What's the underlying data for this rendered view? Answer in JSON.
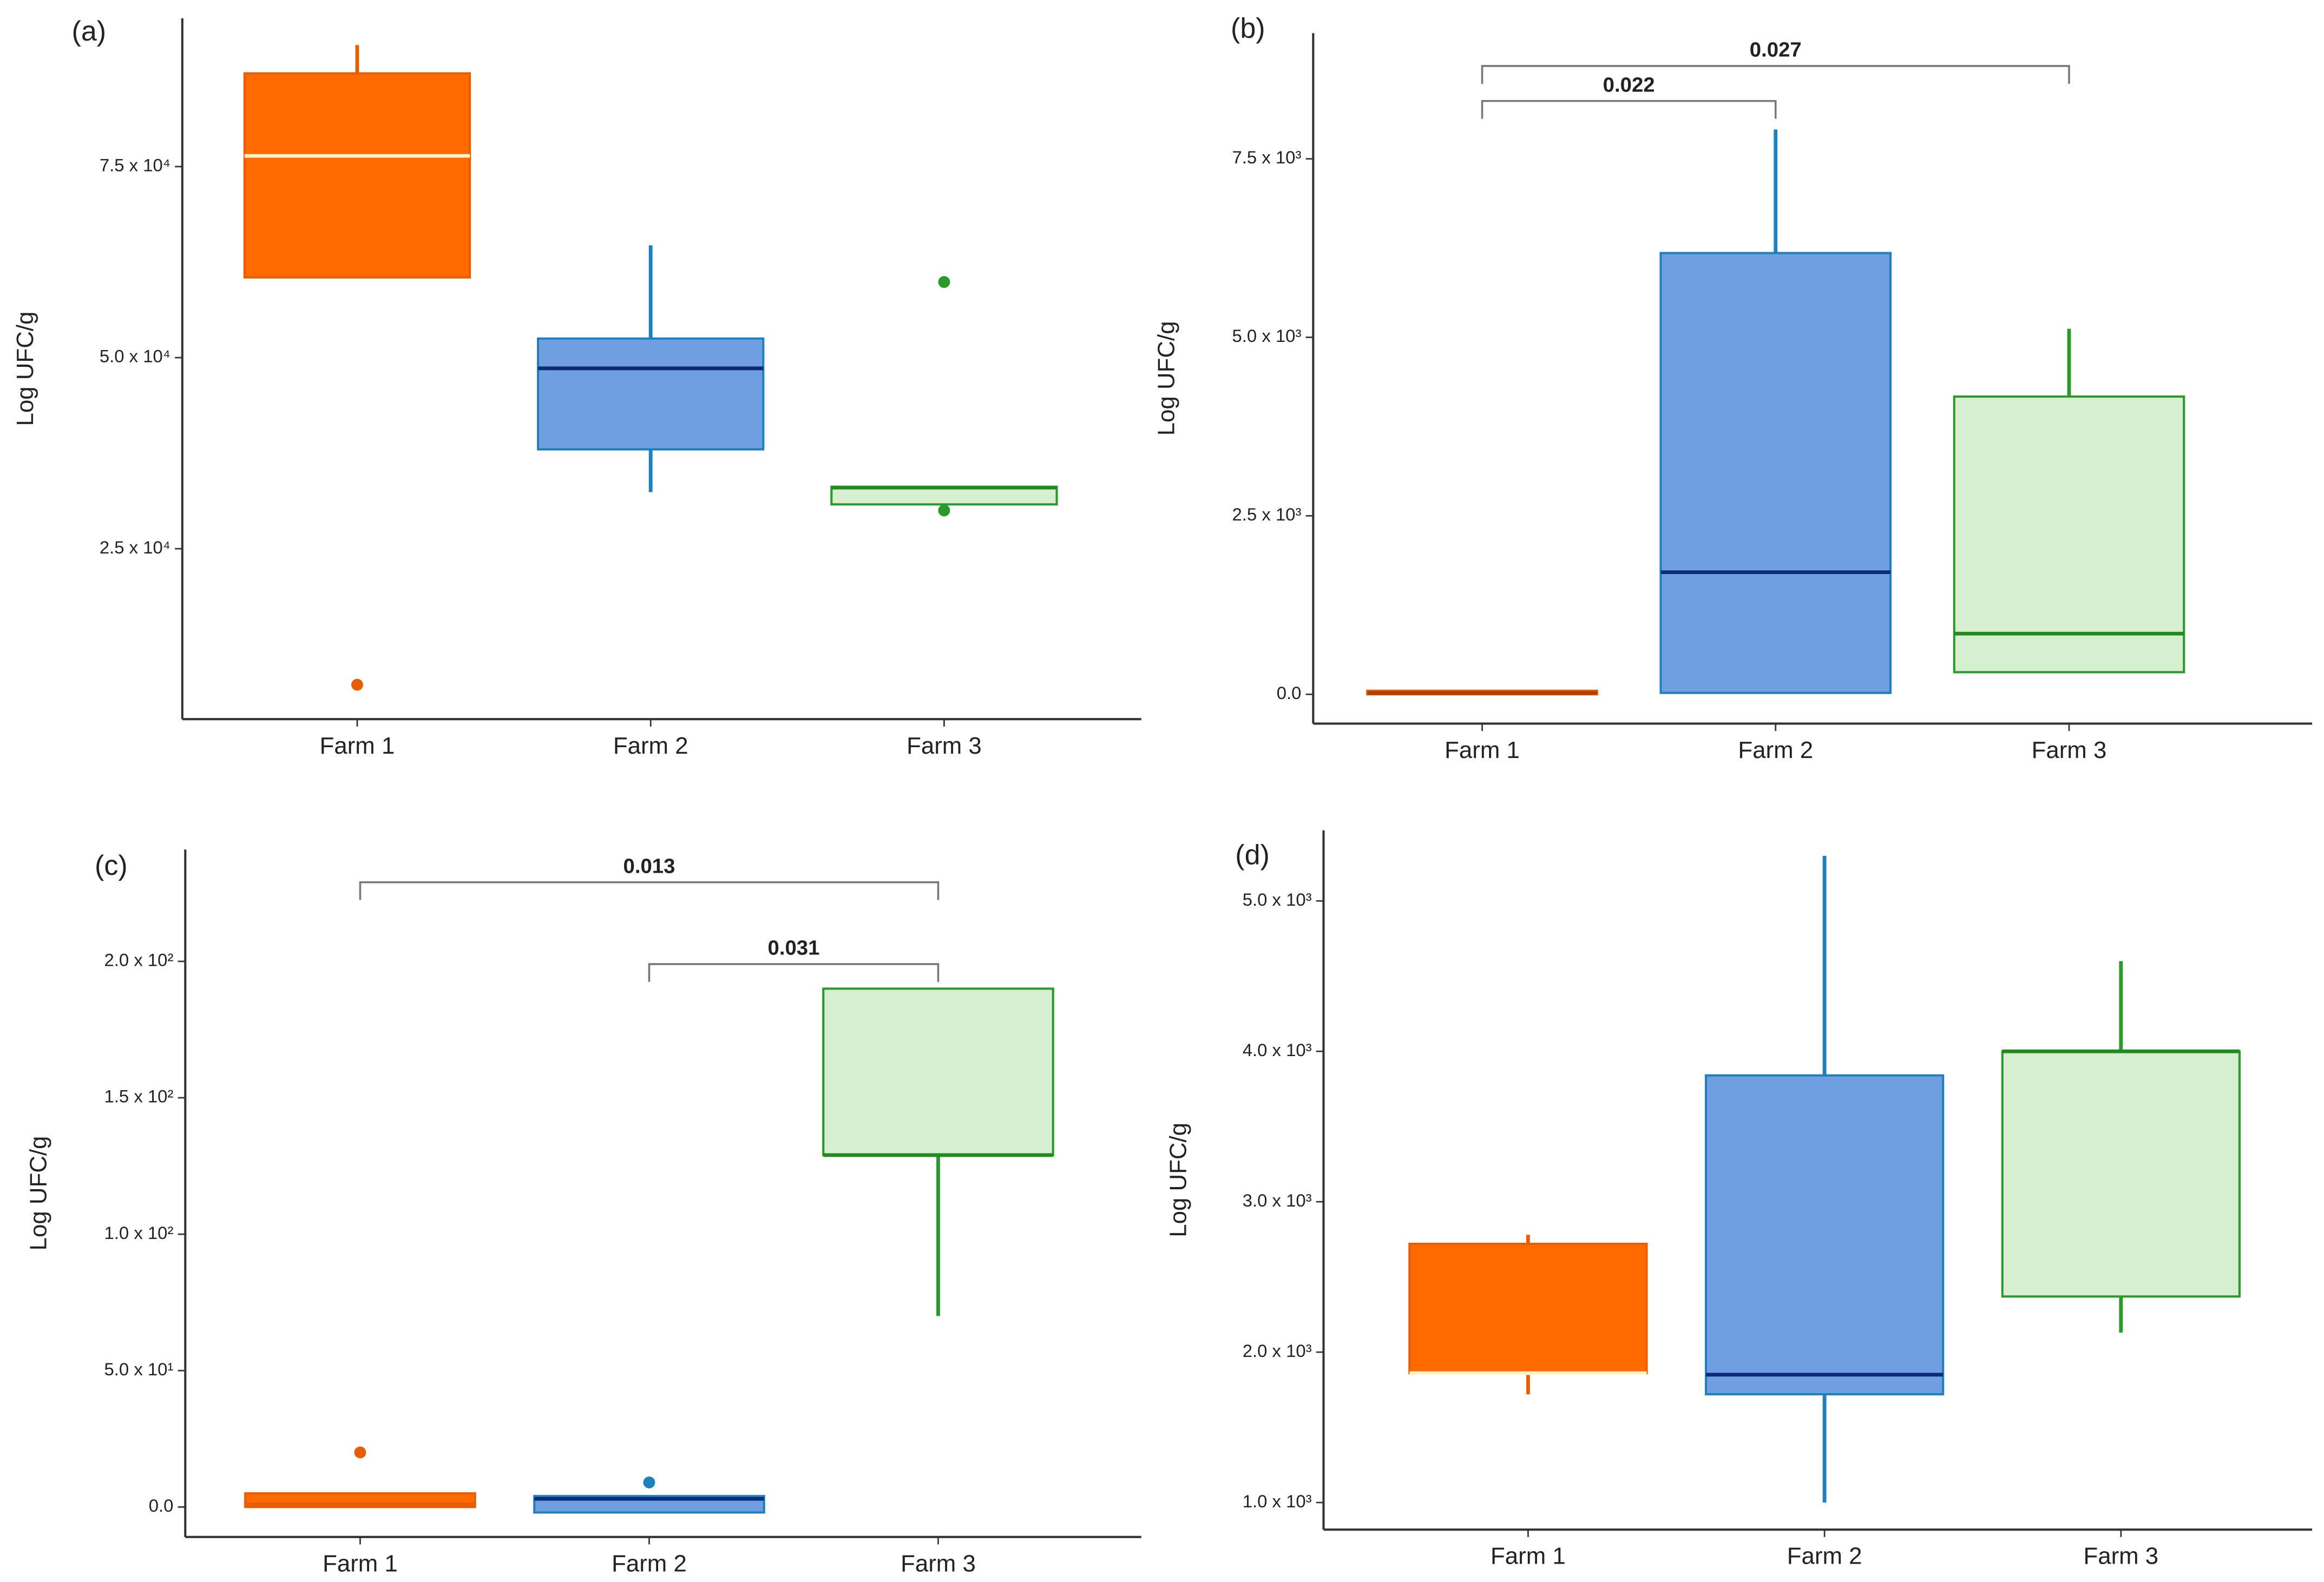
{
  "chart_data": [
    {
      "type": "box",
      "panel_label": "(a)",
      "y_label": "Log UFC/g",
      "categories": [
        "Farm 1",
        "Farm 2",
        "Farm 3"
      ],
      "ylim": [
        2700,
        94400
      ],
      "yticks": [
        {
          "value": 25000,
          "label": "2.5 x 10⁴"
        },
        {
          "value": 50000,
          "label": "5.0 x 10⁴"
        },
        {
          "value": 75000,
          "label": "7.5 x 10⁴"
        }
      ],
      "boxes": [
        {
          "min": 60500,
          "q1": 60500,
          "median": 76400,
          "q3": 87200,
          "max": 90900,
          "outliers": [
            7200
          ],
          "color": "#ff6a00",
          "edge_color": "#e85d00",
          "median_color": "#fff3cc"
        },
        {
          "min": 32400,
          "q1": 38000,
          "median": 48600,
          "q3": 52500,
          "max": 64700,
          "outliers": [],
          "color": "#6f9fe0",
          "edge_color": "#1f80c0",
          "median_color": "#0b2a78"
        },
        {
          "min": 30800,
          "q1": 30800,
          "median": 33000,
          "q3": 33100,
          "max": 33100,
          "outliers": [
            59900,
            30000
          ],
          "color": "#d7eed0",
          "edge_color": "#2a9a2a",
          "median_color": "#1f8b1f"
        }
      ],
      "annotations": []
    },
    {
      "type": "box",
      "panel_label": "(b)",
      "y_label": "Log UFC/g",
      "categories": [
        "Farm 1",
        "Farm 2",
        "Farm 3"
      ],
      "ylim": [
        -410,
        9260
      ],
      "yticks": [
        {
          "value": 0,
          "label": "0.0"
        },
        {
          "value": 2500,
          "label": "2.5 x 10³"
        },
        {
          "value": 5000,
          "label": "5.0 x 10³"
        },
        {
          "value": 7500,
          "label": "7.5 x 10³"
        }
      ],
      "boxes": [
        {
          "min": 0,
          "q1": 0,
          "median": 20,
          "q3": 50,
          "max": 50,
          "outliers": [],
          "color": "#ff6a00",
          "edge_color": "#e85d00",
          "median_color": "#b04000"
        },
        {
          "min": 20,
          "q1": 20,
          "median": 1710,
          "q3": 6180,
          "max": 7910,
          "outliers": [],
          "color": "#6f9fe0",
          "edge_color": "#1f80c0",
          "median_color": "#0b2a78"
        },
        {
          "min": 310,
          "q1": 310,
          "median": 850,
          "q3": 4170,
          "max": 5120,
          "outliers": [],
          "color": "#d7eed0",
          "edge_color": "#2a9a2a",
          "median_color": "#1f8b1f"
        }
      ],
      "annotations": [
        {
          "text": "0.022",
          "between": [
            "Farm 1",
            "Farm 2"
          ],
          "y": 8310
        },
        {
          "text": "0.027",
          "between": [
            "Farm 1",
            "Farm 3"
          ],
          "y": 8800
        }
      ]
    },
    {
      "type": "box",
      "panel_label": "(c)",
      "y_label": "Log UFC/g",
      "categories": [
        "Farm 1",
        "Farm 2",
        "Farm 3"
      ],
      "ylim": [
        -11,
        241
      ],
      "yticks": [
        {
          "value": 0,
          "label": "0.0"
        },
        {
          "value": 50,
          "label": "5.0 x 10¹"
        },
        {
          "value": 100,
          "label": "1.0 x 10²"
        },
        {
          "value": 150,
          "label": "1.5 x 10²"
        },
        {
          "value": 200,
          "label": "2.0 x 10²"
        }
      ],
      "boxes": [
        {
          "min": 0,
          "q1": 0,
          "median": 1,
          "q3": 5,
          "max": 5,
          "outliers": [
            20
          ],
          "color": "#ff6a00",
          "edge_color": "#e85d00",
          "median_color": "#e85d00"
        },
        {
          "min": -2,
          "q1": -2,
          "median": 3,
          "q3": 4,
          "max": 4,
          "outliers": [
            9
          ],
          "color": "#6f9fe0",
          "edge_color": "#1f80c0",
          "median_color": "#0b2a78"
        },
        {
          "min": 70,
          "q1": 129,
          "median": 129,
          "q3": 190,
          "max": 190,
          "outliers": [],
          "color": "#d7eed0",
          "edge_color": "#2a9a2a",
          "median_color": "#1f8b1f"
        }
      ],
      "annotations": [
        {
          "text": "0.013",
          "between": [
            "Farm 1",
            "Farm 3"
          ],
          "y": 229
        },
        {
          "text": "0.031",
          "between": [
            "Farm 2",
            "Farm 3"
          ],
          "y": 199
        }
      ]
    },
    {
      "type": "box",
      "panel_label": "(d)",
      "y_label": "Log UFC/g",
      "categories": [
        "Farm 1",
        "Farm 2",
        "Farm 3"
      ],
      "ylim": [
        820,
        5470
      ],
      "yticks": [
        {
          "value": 1000,
          "label": "1.0 x 10³"
        },
        {
          "value": 2000,
          "label": "2.0 x 10³"
        },
        {
          "value": 3000,
          "label": "3.0 x 10³"
        },
        {
          "value": 4000,
          "label": "4.0 x 10³"
        },
        {
          "value": 5000,
          "label": "5.0 x 10³"
        }
      ],
      "boxes": [
        {
          "min": 1720,
          "q1": 1860,
          "median": 1860,
          "q3": 2720,
          "max": 2780,
          "outliers": [],
          "color": "#ff6a00",
          "edge_color": "#e85d00",
          "median_color": "#fff3cc"
        },
        {
          "min": 1000,
          "q1": 1720,
          "median": 1850,
          "q3": 3840,
          "max": 5300,
          "outliers": [],
          "color": "#6f9fe0",
          "edge_color": "#1f80c0",
          "median_color": "#0b2a78"
        },
        {
          "min": 2130,
          "q1": 2370,
          "median": 4000,
          "q3": 4000,
          "max": 4600,
          "outliers": [],
          "color": "#d7eed0",
          "edge_color": "#2a9a2a",
          "median_color": "#1f8b1f"
        }
      ],
      "annotations": []
    }
  ]
}
